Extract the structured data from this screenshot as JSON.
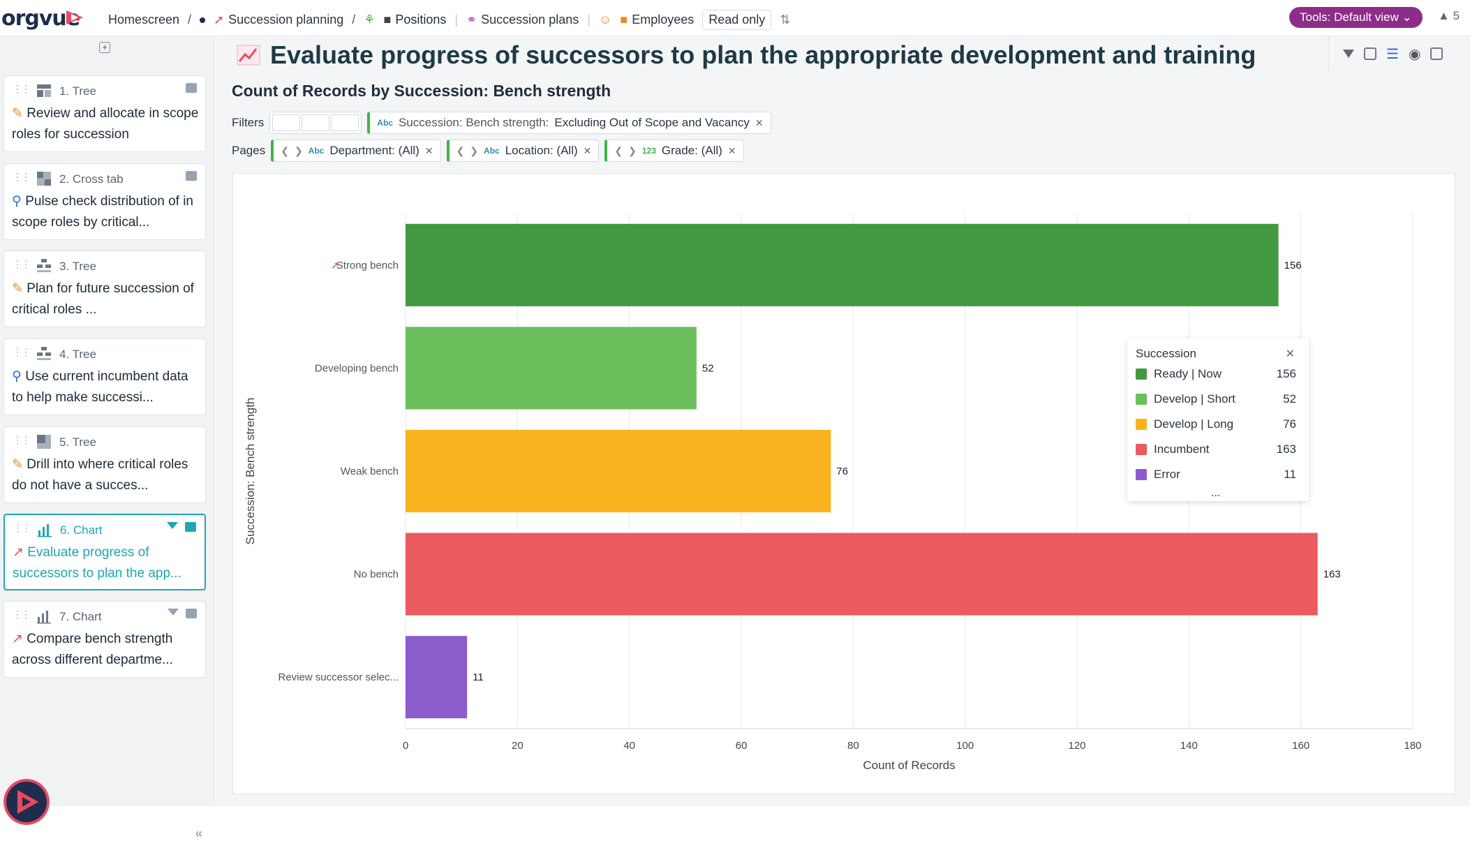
{
  "app": {
    "name": "orgvue"
  },
  "breadcrumbs": [
    {
      "label": "Homescreen"
    },
    {
      "label": "Succession planning"
    },
    {
      "label": "Positions"
    },
    {
      "label": "Succession plans"
    },
    {
      "label": "Employees"
    }
  ],
  "read_only": "Read only",
  "tools_button": "Tools: Default view",
  "users_count": "5",
  "sidebar": {
    "cards": [
      {
        "num": "1. Tree",
        "text": "Review and allocate in scope roles for succession"
      },
      {
        "num": "2. Cross tab",
        "text": "Pulse check distribution of in scope roles by critical..."
      },
      {
        "num": "3. Tree",
        "text": "Plan for future succession of critical roles ..."
      },
      {
        "num": "4. Tree",
        "text": "Use current incumbent data to help make successi..."
      },
      {
        "num": "5. Tree",
        "text": "Drill into where critical roles do not have a succes..."
      },
      {
        "num": "6. Chart",
        "text": "Evaluate progress of successors to plan the app..."
      },
      {
        "num": "7. Chart",
        "text": "Compare bench strength across different departme..."
      }
    ]
  },
  "page": {
    "title": "Evaluate progress of successors to plan the appropriate development and training",
    "chart_heading": "Count of Records by Succession: Bench strength"
  },
  "filters": {
    "label": "Filters",
    "chip": {
      "type": "Abc",
      "field": "Succession: Bench strength:",
      "value": "Excluding Out of Scope and Vacancy"
    }
  },
  "pages": {
    "label": "Pages",
    "chips": [
      {
        "type": "Abc",
        "text": "Department: (All)"
      },
      {
        "type": "Abc",
        "text": "Location: (All)"
      },
      {
        "type": "123",
        "text": "Grade: (All)"
      }
    ]
  },
  "legend": {
    "title": "Succession",
    "items": [
      {
        "name_a": "Ready",
        "name_b": "Now",
        "value": "156",
        "color": "#43993f"
      },
      {
        "name_a": "Develop",
        "name_b": "Short",
        "value": "52",
        "color": "#6abf5c"
      },
      {
        "name_a": "Develop",
        "name_b": "Long",
        "value": "76",
        "color": "#fbb21f"
      },
      {
        "name_a": "Incumbent",
        "name_b": "",
        "value": "163",
        "color": "#eb5a5f"
      },
      {
        "name_a": "Error",
        "name_b": "",
        "value": "11",
        "color": "#8a5ccc"
      }
    ],
    "more": "..."
  },
  "chart_data": {
    "type": "bar",
    "orientation": "horizontal",
    "title": "Count of Records by Succession: Bench strength",
    "categories": [
      "Strong bench",
      "Developing bench",
      "Weak bench",
      "No bench",
      "Review successor selec..."
    ],
    "values": [
      156,
      52,
      76,
      163,
      11
    ],
    "colors": [
      "#43993f",
      "#6abf5c",
      "#fbb21f",
      "#eb5a5f",
      "#8a5ccc"
    ],
    "xlabel": "Count of Records",
    "ylabel": "Succession: Bench strength",
    "xlim": [
      0,
      180
    ],
    "xticks": [
      0,
      20,
      40,
      60,
      80,
      100,
      120,
      140,
      160,
      180
    ],
    "grid": true,
    "legend_position": "right"
  }
}
